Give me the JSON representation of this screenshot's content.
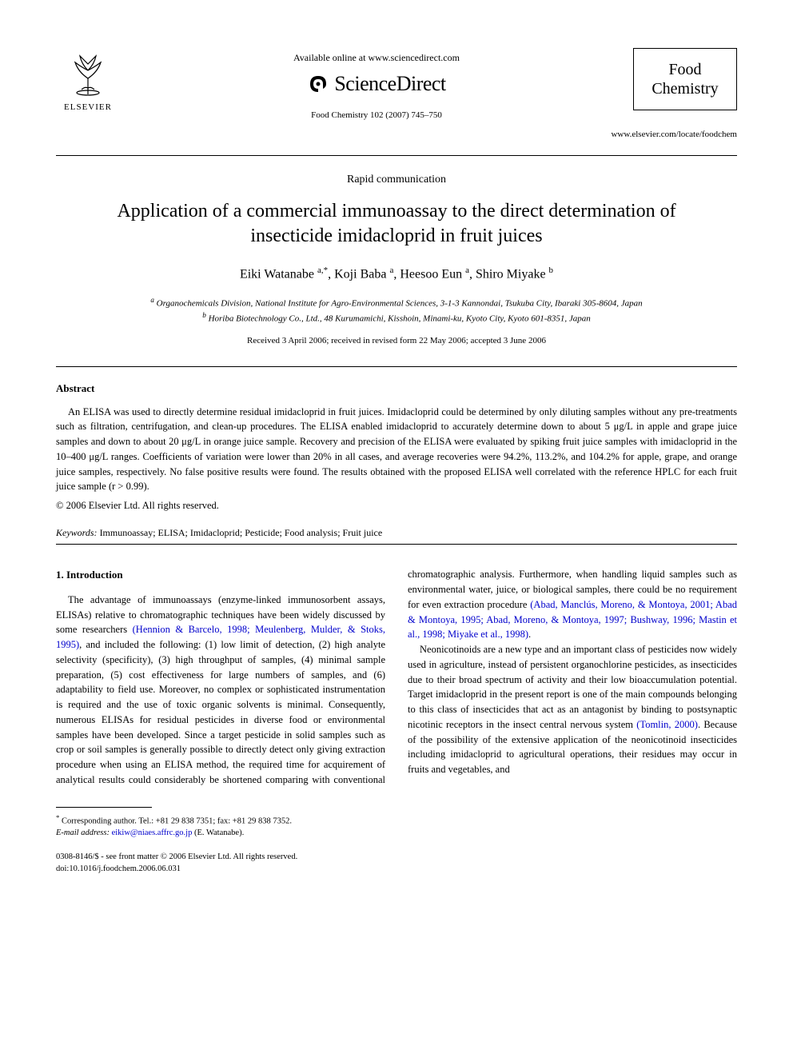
{
  "header": {
    "available_text": "Available online at www.sciencedirect.com",
    "sciencedirect": "ScienceDirect",
    "elsevier_label": "ELSEVIER",
    "journal_ref": "Food Chemistry 102 (2007) 745–750",
    "journal_box_line1": "Food",
    "journal_box_line2": "Chemistry",
    "journal_url": "www.elsevier.com/locate/foodchem"
  },
  "article": {
    "rapid": "Rapid communication",
    "title": "Application of a commercial immunoassay to the direct determination of insecticide imidacloprid in fruit juices",
    "authors_html": "Eiki Watanabe <sup>a,*</sup>, Koji Baba <sup>a</sup>, Heesoo Eun <sup>a</sup>, Shiro Miyake <sup>b</sup>",
    "affil_a": "Organochemicals Division, National Institute for Agro-Environmental Sciences, 3-1-3 Kannondai, Tsukuba City, Ibaraki 305-8604, Japan",
    "affil_b": "Horiba Biotechnology Co., Ltd., 48 Kurumamichi, Kisshoin, Minami-ku, Kyoto City, Kyoto 601-8351, Japan",
    "dates": "Received 3 April 2006; received in revised form 22 May 2006; accepted 3 June 2006"
  },
  "abstract": {
    "heading": "Abstract",
    "text": "An ELISA was used to directly determine residual imidacloprid in fruit juices. Imidacloprid could be determined by only diluting samples without any pre-treatments such as filtration, centrifugation, and clean-up procedures. The ELISA enabled imidacloprid to accurately determine down to about 5 μg/L in apple and grape juice samples and down to about 20 μg/L in orange juice sample. Recovery and precision of the ELISA were evaluated by spiking fruit juice samples with imidacloprid in the 10–400 μg/L ranges. Coefficients of variation were lower than 20% in all cases, and average recoveries were 94.2%, 113.2%, and 104.2% for apple, grape, and orange juice samples, respectively. No false positive results were found. The results obtained with the proposed ELISA well correlated with the reference HPLC for each fruit juice sample (r > 0.99).",
    "copyright": "© 2006 Elsevier Ltd. All rights reserved."
  },
  "keywords": {
    "label": "Keywords:",
    "text": " Immunoassay; ELISA; Imidacloprid; Pesticide; Food analysis; Fruit juice"
  },
  "intro": {
    "heading": "1. Introduction",
    "p1_a": "The advantage of immunoassays (enzyme-linked immunosorbent assays, ELISAs) relative to chromatographic techniques have been widely discussed by some researchers ",
    "p1_cite1": "(Hennion & Barcelo, 1998; Meulenberg, Mulder, & Stoks, 1995)",
    "p1_b": ", and included the following: (1) low limit of detection, (2) high analyte selectivity (specificity), (3) high throughput of samples, (4) minimal sample preparation, (5) cost effectiveness for large numbers of samples, and (6) adaptability to field use. Moreover, no complex or sophisticated instrumentation is required and the use of toxic organic solvents is minimal. Consequently, numerous ELISAs for residual pesticides in diverse food or environmental samples have been developed. Since a target pesticide in solid samples such as crop or soil samples is generally possible to directly detect only giving extraction procedure when using an ELISA method, the required time for acquirement of analytical results could considerably be shortened comparing with conventional chromatographic analysis. Furthermore, when handling liquid samples such as environmental water, juice, or biological samples, there could be no requirement for even extraction procedure ",
    "p1_cite2": "(Abad, Manclús, Moreno, & Montoya, 2001; Abad & Montoya, 1995; Abad, Moreno, & Montoya, 1997; Bushway, 1996; Mastin et al., 1998; Miyake et al., 1998)",
    "p1_c": ".",
    "p2_a": "Neonicotinoids are a new type and an important class of pesticides now widely used in agriculture, instead of persistent organochlorine pesticides, as insecticides due to their broad spectrum of activity and their low bioaccumulation potential. Target imidacloprid in the present report is one of the main compounds belonging to this class of insecticides that act as an antagonist by binding to postsynaptic nicotinic receptors in the insect central nervous system ",
    "p2_cite1": "(Tomlin, 2000)",
    "p2_b": ". Because of the possibility of the extensive application of the neonicotinoid insecticides including imidacloprid to agricultural operations, their residues may occur in fruits and vegetables, and"
  },
  "footnote": {
    "corr": "Corresponding author. Tel.: +81 29 838 7351; fax: +81 29 838 7352.",
    "email_label": "E-mail address:",
    "email": "eikiw@niaes.affrc.go.jp",
    "email_suffix": " (E. Watanabe)."
  },
  "footer": {
    "left_line1": "0308-8146/$ - see front matter © 2006 Elsevier Ltd. All rights reserved.",
    "left_line2": "doi:10.1016/j.foodchem.2006.06.031"
  },
  "colors": {
    "text": "#000000",
    "link": "#0000cc",
    "background": "#ffffff"
  }
}
